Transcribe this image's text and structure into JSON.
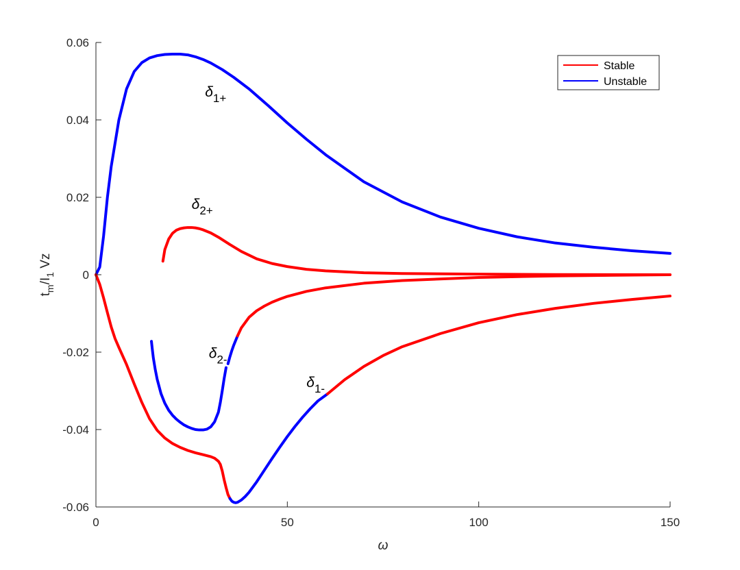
{
  "chart_data": {
    "type": "line",
    "title": "",
    "xlabel": "ω",
    "ylabel": "t_m/I_1 Vz",
    "ylabel_parts": {
      "t": "t",
      "m": "m",
      "slash_I": "/I",
      "one": "1",
      "vz": " Vz"
    },
    "xlim": [
      0,
      150
    ],
    "ylim": [
      -0.06,
      0.06
    ],
    "x_ticks": [
      0,
      50,
      100,
      150
    ],
    "x_tick_labels": [
      "0",
      "50",
      "100",
      "150"
    ],
    "y_ticks": [
      -0.06,
      -0.04,
      -0.02,
      0,
      0.02,
      0.04,
      0.06
    ],
    "y_tick_labels": [
      "-0.06",
      "-0.04",
      "-0.02",
      "0",
      "0.02",
      "0.04",
      "0.06"
    ],
    "grid": false,
    "legend_position": "top-right",
    "legend": [
      {
        "label": "Stable",
        "color": "#ff0000"
      },
      {
        "label": "Unstable",
        "color": "#0000ff"
      }
    ],
    "colors": {
      "stable": "#ff0000",
      "unstable": "#0000ff",
      "axis": "#262626"
    },
    "curve_labels": [
      {
        "base": "δ",
        "sub": "1+",
        "x": 28.5,
        "y": 0.046
      },
      {
        "base": "δ",
        "sub": "2+",
        "x": 25,
        "y": 0.017
      },
      {
        "base": "δ",
        "sub": "2-",
        "x": 29.5,
        "y": -0.0215
      },
      {
        "base": "δ",
        "sub": "1-",
        "x": 55,
        "y": -0.029
      }
    ],
    "series": [
      {
        "curve": "δ1+",
        "stability": "Unstable",
        "x": [
          0,
          1,
          2,
          3,
          4,
          6,
          8,
          10,
          12,
          14,
          16,
          18,
          20,
          22,
          24,
          26,
          28,
          30,
          33,
          36,
          40,
          45,
          50,
          55,
          60,
          70,
          80,
          90,
          100,
          110,
          120,
          130,
          140,
          150
        ],
        "y": [
          0,
          0.002,
          0.01,
          0.02,
          0.028,
          0.04,
          0.048,
          0.0525,
          0.0548,
          0.056,
          0.0566,
          0.0569,
          0.057,
          0.057,
          0.0568,
          0.0563,
          0.0556,
          0.0547,
          0.053,
          0.051,
          0.048,
          0.0437,
          0.0392,
          0.035,
          0.031,
          0.024,
          0.0188,
          0.0149,
          0.012,
          0.0098,
          0.0082,
          0.0071,
          0.0062,
          0.0055
        ]
      },
      {
        "curve": "δ2+",
        "stability": "Stable",
        "x": [
          17.5,
          18,
          19,
          20,
          21,
          22,
          23,
          24,
          25,
          26,
          27,
          28,
          30,
          32,
          35,
          38,
          42,
          46,
          50,
          55,
          60,
          70,
          80,
          100,
          120,
          150
        ],
        "y": [
          0.0035,
          0.0065,
          0.0092,
          0.0107,
          0.0115,
          0.0119,
          0.0121,
          0.0122,
          0.0122,
          0.0121,
          0.0119,
          0.0116,
          0.0108,
          0.0097,
          0.0078,
          0.006,
          0.0041,
          0.0029,
          0.0021,
          0.0014,
          0.001,
          0.0005,
          0.0003,
          0.00015,
          5e-05,
          0
        ]
      },
      {
        "curve": "δ2-",
        "stability": "Unstable",
        "x": [
          14.5,
          14.7,
          15,
          15.5,
          16,
          17,
          18,
          19,
          20,
          21,
          22,
          23,
          24,
          25,
          26,
          27,
          28,
          29,
          30,
          31,
          32,
          32.5,
          33,
          33.5,
          34
        ],
        "y": [
          -0.0172,
          -0.019,
          -0.0215,
          -0.0245,
          -0.027,
          -0.0307,
          -0.0332,
          -0.035,
          -0.0363,
          -0.0373,
          -0.0381,
          -0.0388,
          -0.0393,
          -0.0397,
          -0.04,
          -0.0401,
          -0.0401,
          -0.0399,
          -0.0393,
          -0.038,
          -0.0355,
          -0.033,
          -0.03,
          -0.0268,
          -0.024
        ]
      },
      {
        "curve": "δ2-",
        "stability": "Unstable",
        "x": [
          34.5,
          35,
          35.5,
          36,
          36.5,
          37
        ],
        "y": [
          -0.023,
          -0.0212,
          -0.0196,
          -0.0182,
          -0.017,
          -0.0158
        ]
      },
      {
        "curve": "δ2-",
        "stability": "Stable",
        "x": [
          37,
          38,
          40,
          42,
          44,
          46,
          48,
          50,
          55,
          60,
          70,
          80,
          100,
          120,
          150
        ],
        "y": [
          -0.0158,
          -0.0137,
          -0.011,
          -0.0093,
          -0.0081,
          -0.0071,
          -0.0063,
          -0.0056,
          -0.0043,
          -0.0034,
          -0.0022,
          -0.0015,
          -0.0007,
          -0.0003,
          0
        ]
      },
      {
        "curve": "δ1-",
        "stability": "Stable",
        "x": [
          0,
          1,
          2,
          3,
          4,
          5,
          6,
          8,
          10,
          12,
          14,
          16,
          18,
          20,
          22,
          24,
          26,
          28,
          30,
          31,
          32,
          32.5,
          33,
          33.5,
          34,
          34.5,
          35
        ],
        "y": [
          0,
          -0.0025,
          -0.006,
          -0.0098,
          -0.0135,
          -0.0165,
          -0.0188,
          -0.0232,
          -0.0282,
          -0.033,
          -0.0372,
          -0.0402,
          -0.0422,
          -0.0436,
          -0.0446,
          -0.0454,
          -0.046,
          -0.0465,
          -0.047,
          -0.0474,
          -0.0482,
          -0.049,
          -0.0507,
          -0.053,
          -0.055,
          -0.0568,
          -0.0578
        ]
      },
      {
        "curve": "δ1-",
        "stability": "Unstable",
        "x": [
          35,
          35.5,
          36,
          36.5,
          37,
          38,
          39,
          40,
          42,
          44,
          46,
          48,
          50,
          52,
          54,
          56,
          58,
          60.5
        ],
        "y": [
          -0.0578,
          -0.0585,
          -0.0588,
          -0.0589,
          -0.0588,
          -0.0582,
          -0.0573,
          -0.0562,
          -0.0535,
          -0.0505,
          -0.0475,
          -0.0446,
          -0.0418,
          -0.0392,
          -0.0368,
          -0.0346,
          -0.0326,
          -0.0308
        ]
      },
      {
        "curve": "δ1-",
        "stability": "Stable",
        "x": [
          60.5,
          65,
          70,
          75,
          80,
          90,
          100,
          110,
          120,
          130,
          140,
          150
        ],
        "y": [
          -0.0308,
          -0.0271,
          -0.0237,
          -0.0209,
          -0.0186,
          -0.0152,
          -0.0124,
          -0.0103,
          -0.0087,
          -0.0074,
          -0.0064,
          -0.0055
        ]
      }
    ]
  }
}
